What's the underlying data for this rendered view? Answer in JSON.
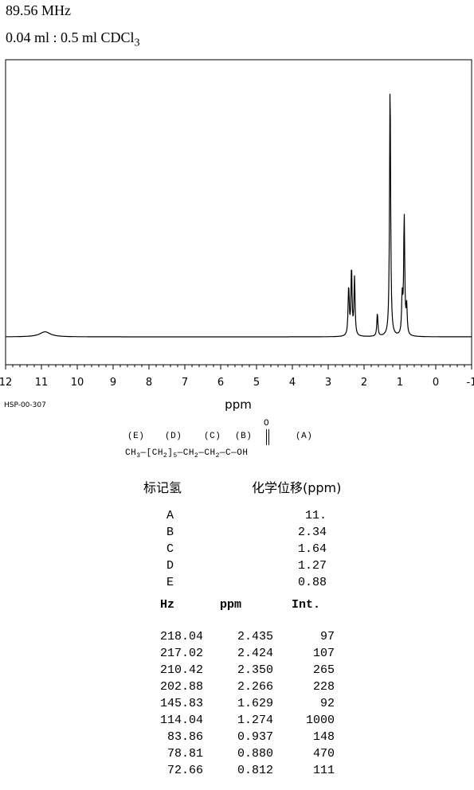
{
  "header": {
    "frequency": "89.56 MHz",
    "sample_prefix": "0.04 ml : 0.5 ml CDCl",
    "sample_subscript": "3"
  },
  "chart_data": {
    "type": "line",
    "xlabel": "ppm",
    "x_reversed": true,
    "xlim": [
      12,
      -1
    ],
    "ticks": [
      12,
      11,
      10,
      9,
      8,
      7,
      6,
      5,
      4,
      3,
      2,
      1,
      0,
      -1
    ],
    "tick_labels": [
      "12",
      "11",
      "10",
      "9",
      "8",
      "7",
      "6",
      "5",
      "4",
      "3",
      "2",
      "1",
      "0",
      "-1"
    ],
    "peaks": [
      {
        "ppm": 10.9,
        "int": 20,
        "broad": true
      },
      {
        "ppm": 2.435,
        "int": 97
      },
      {
        "ppm": 2.424,
        "int": 107
      },
      {
        "ppm": 2.35,
        "int": 265
      },
      {
        "ppm": 2.266,
        "int": 228
      },
      {
        "ppm": 1.629,
        "int": 92
      },
      {
        "ppm": 1.274,
        "int": 1000
      },
      {
        "ppm": 0.937,
        "int": 148
      },
      {
        "ppm": 0.88,
        "int": 470
      },
      {
        "ppm": 0.812,
        "int": 111
      }
    ]
  },
  "code": "HSP-00-307",
  "structure": {
    "labels": [
      "(E)",
      "(D)",
      "(C)",
      "(B)",
      "(A)"
    ],
    "oxygen": "O",
    "ch3": "CH",
    "ch3_sub": "3",
    "dash1": "—[CH",
    "d_sub": "2",
    "bracket": "]",
    "five": "5",
    "c_part": "—CH",
    "c_sub": "2",
    "b_part": "—CH",
    "b_sub": "2",
    "carbon": "—C—",
    "oh": "OH"
  },
  "assignment": {
    "col1_header": "标记氢",
    "col2_header": "化学位移(ppm)",
    "rows": [
      {
        "label": "A",
        "shift": "11."
      },
      {
        "label": "B",
        "shift": "2.34"
      },
      {
        "label": "C",
        "shift": "1.64"
      },
      {
        "label": "D",
        "shift": "1.27"
      },
      {
        "label": "E",
        "shift": "0.88"
      }
    ]
  },
  "peak_table": {
    "headers": [
      "Hz",
      "ppm",
      "Int."
    ],
    "rows": [
      [
        "218.04",
        "2.435",
        "97"
      ],
      [
        "217.02",
        "2.424",
        "107"
      ],
      [
        "210.42",
        "2.350",
        "265"
      ],
      [
        "202.88",
        "2.266",
        "228"
      ],
      [
        "145.83",
        "1.629",
        "92"
      ],
      [
        "114.04",
        "1.274",
        "1000"
      ],
      [
        "83.86",
        "0.937",
        "148"
      ],
      [
        "78.81",
        "0.880",
        "470"
      ],
      [
        "72.66",
        "0.812",
        "111"
      ]
    ]
  }
}
